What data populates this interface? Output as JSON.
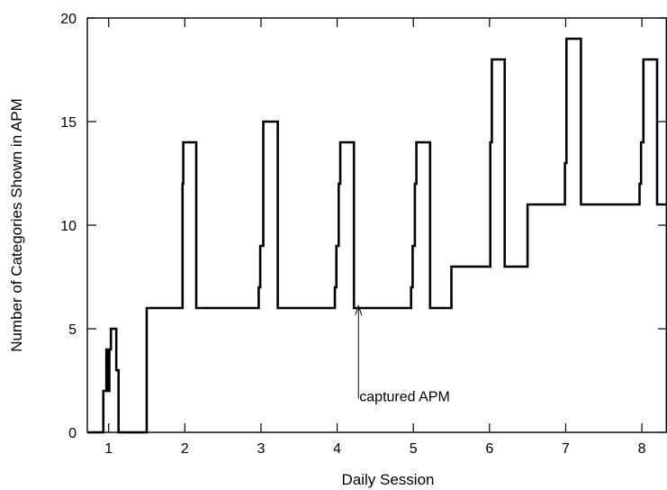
{
  "chart_data": {
    "type": "line",
    "title": "",
    "xlabel": "Daily Session",
    "ylabel": "Number of Categories Shown in APM",
    "xlim": [
      0.72,
      8.33
    ],
    "ylim": [
      0,
      20
    ],
    "xticks": [
      1,
      2,
      3,
      4,
      5,
      6,
      7,
      8
    ],
    "yticks": [
      0,
      5,
      10,
      15,
      20
    ],
    "grid": false,
    "legend": "none",
    "line_color": "#000000",
    "series": [
      {
        "step": "post",
        "x": [
          0.72,
          0.93,
          0.97,
          0.99,
          1.01,
          1.03,
          1.05,
          1.1,
          1.13,
          1.17,
          1.5,
          1.97,
          1.98,
          2.0,
          2.02,
          2.04,
          2.15,
          2.97,
          2.99,
          3.03,
          3.05,
          3.08,
          3.22,
          3.97,
          3.99,
          4.02,
          4.04,
          4.07,
          4.22,
          4.97,
          4.99,
          5.02,
          5.04,
          5.07,
          5.22,
          5.5,
          6.01,
          6.03,
          6.05,
          6.2,
          6.5,
          6.99,
          7.01,
          7.04,
          7.2,
          7.97,
          7.99,
          8.02,
          8.04,
          8.2,
          8.33
        ],
        "values": [
          0,
          2,
          4,
          2,
          4,
          5,
          5,
          3,
          0,
          0,
          6,
          12,
          14,
          14,
          14,
          14,
          6,
          7,
          9,
          15,
          15,
          15,
          6,
          7,
          9,
          12,
          14,
          14,
          6,
          7,
          9,
          12,
          14,
          14,
          6,
          8,
          14,
          18,
          18,
          8,
          11,
          13,
          19,
          19,
          11,
          12,
          14,
          18,
          18,
          11,
          11
        ]
      }
    ],
    "annotation": {
      "text": "captured APM",
      "arrow_to": [
        4.28,
        6.1
      ],
      "text_at": [
        4.28,
        1.8
      ]
    }
  }
}
